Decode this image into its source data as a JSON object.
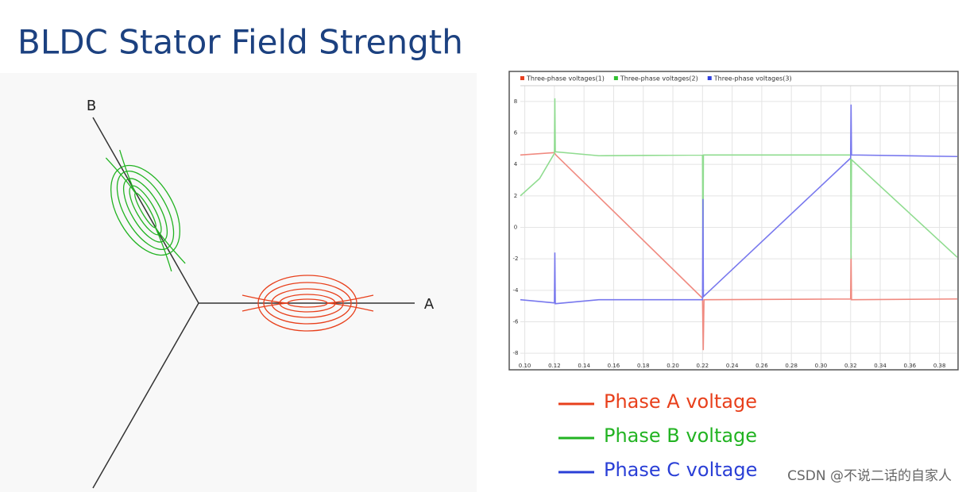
{
  "title": "BLDC Stator Field Strength",
  "diagram": {
    "axis_labels": [
      "B",
      "A"
    ]
  },
  "chart_data": {
    "type": "line",
    "xlim": [
      0.097,
      0.392
    ],
    "ylim": [
      -9,
      9
    ],
    "xticks": [
      {
        "value": 0.1,
        "label": "0.10"
      },
      {
        "value": 0.12,
        "label": "0.12"
      },
      {
        "value": 0.14,
        "label": "0.14"
      },
      {
        "value": 0.16,
        "label": "0.16"
      },
      {
        "value": 0.18,
        "label": "0.18"
      },
      {
        "value": 0.2,
        "label": "0.20"
      },
      {
        "value": 0.22,
        "label": "0.22"
      },
      {
        "value": 0.24,
        "label": "0.24"
      },
      {
        "value": 0.26,
        "label": "0.26"
      },
      {
        "value": 0.28,
        "label": "0.28"
      },
      {
        "value": 0.3,
        "label": "0.30"
      },
      {
        "value": 0.32,
        "label": "0.32"
      },
      {
        "value": 0.34,
        "label": "0.34"
      },
      {
        "value": 0.36,
        "label": "0.36"
      },
      {
        "value": 0.38,
        "label": "0.38"
      }
    ],
    "yticks": [
      -8,
      -6,
      -4,
      -2,
      0,
      2,
      4,
      6,
      8
    ],
    "grid": true,
    "series": [
      {
        "name": "Three-phase voltages(1)",
        "color": "#f08a80",
        "legend_color": "#e84020",
        "x": [
          0.097,
          0.12,
          0.121,
          0.22,
          0.2205,
          0.221,
          0.32,
          0.3203,
          0.3206,
          0.392
        ],
        "values": [
          4.6,
          4.75,
          4.6,
          -4.5,
          -7.8,
          -4.6,
          -4.55,
          -1.8,
          -4.6,
          -4.55
        ]
      },
      {
        "name": "Three-phase voltages(2)",
        "color": "#90dc90",
        "legend_color": "#30c030",
        "x": [
          0.097,
          0.11,
          0.12,
          0.1203,
          0.1206,
          0.15,
          0.22,
          0.2203,
          0.2206,
          0.32,
          0.3203,
          0.3206,
          0.392
        ],
        "values": [
          2.0,
          3.1,
          4.7,
          8.2,
          4.8,
          4.55,
          4.6,
          -4.0,
          4.6,
          4.6,
          -2.0,
          4.3,
          -1.9
        ]
      },
      {
        "name": "Three-phase voltages(3)",
        "color": "#7878ee",
        "legend_color": "#3040e0",
        "x": [
          0.097,
          0.12,
          0.1203,
          0.1206,
          0.15,
          0.22,
          0.2203,
          0.2206,
          0.32,
          0.3203,
          0.3206,
          0.392
        ],
        "values": [
          -4.6,
          -4.8,
          -1.6,
          -4.85,
          -4.6,
          -4.6,
          1.8,
          -4.4,
          4.4,
          7.8,
          4.6,
          4.5
        ]
      }
    ]
  },
  "legend_caption": [
    {
      "label": "Phase A voltage",
      "color": "#e8401c"
    },
    {
      "label": "Phase B voltage",
      "color": "#22b322"
    },
    {
      "label": "Phase C voltage",
      "color": "#2a3fd6"
    }
  ],
  "watermark": "CSDN @不说二话的自家人"
}
